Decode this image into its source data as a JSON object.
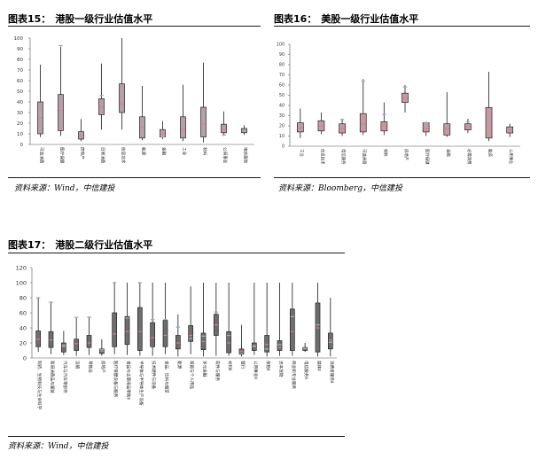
{
  "charts": {
    "c15": {
      "figure_label": "图表15：",
      "title": "港股一级行业估值水平",
      "source": "资料来源：Wind，中信建投",
      "colors": {
        "box": "#b89ea6",
        "median": "#e07d8c",
        "current": "#8fb0cc"
      }
    },
    "c16": {
      "figure_label": "图表16：",
      "title": "美股一级行业估值水平",
      "source": "资料来源：Bloomberg，中信建投",
      "colors": {
        "box": "#c79aa2",
        "median": "#e07d8c",
        "current": "#8fb0cc"
      }
    },
    "c17": {
      "figure_label": "图表17：",
      "title": "港股二级行业估值水平",
      "source": "资料来源：Wind，中信建投",
      "colors": {
        "box": "#6e6e6e",
        "median": "#e07d8c",
        "current": "#8fb0cc"
      }
    }
  },
  "chart_data": [
    {
      "id": "c15",
      "type": "boxplot",
      "title": "港股一级行业估值水平",
      "ylim": [
        0,
        100
      ],
      "yticks": [
        0,
        10,
        20,
        30,
        40,
        50,
        60,
        70,
        80,
        90,
        100
      ],
      "categories": [
        "可选消费",
        "医疗保健",
        "房地产",
        "日常消费",
        "信息技术",
        "能源",
        "金融",
        "工业",
        "材料",
        "公用事业",
        "电信服务"
      ],
      "min": [
        7,
        8,
        3,
        14,
        14,
        4,
        5,
        3,
        2,
        8,
        9
      ],
      "q1": [
        10,
        13,
        5,
        28,
        30,
        6,
        7,
        6,
        7,
        11,
        11
      ],
      "median": [
        25,
        32,
        8,
        35,
        38,
        16,
        10,
        14,
        19,
        14,
        13
      ],
      "q3": [
        40,
        47,
        12,
        43,
        57,
        26,
        14,
        26,
        35,
        19,
        15
      ],
      "max": [
        75,
        92,
        24,
        76,
        100,
        55,
        22,
        56,
        77,
        31,
        18
      ],
      "current": [
        27,
        93,
        11,
        46,
        34,
        9,
        7,
        7,
        8,
        9,
        13
      ]
    },
    {
      "id": "c16",
      "type": "boxplot",
      "title": "美股一级行业估值水平",
      "ylim": [
        0,
        100
      ],
      "yticks": [
        0,
        10,
        20,
        30,
        40,
        50,
        60,
        70,
        80,
        90,
        100
      ],
      "categories": [
        "工业",
        "信息技术",
        "电信服务",
        "可选消费",
        "材料",
        "房地产",
        "医疗保健",
        "金融",
        "必需消费",
        "能源",
        "公用事业"
      ],
      "min": [
        8,
        12,
        10,
        11,
        11,
        33,
        10,
        9,
        13,
        5,
        9
      ],
      "q1": [
        14,
        15,
        13,
        14,
        15,
        43,
        14,
        11,
        16,
        8,
        13
      ],
      "median": [
        18,
        20,
        17,
        22,
        20,
        47,
        17,
        17,
        19,
        25,
        16
      ],
      "q3": [
        23,
        25,
        22,
        32,
        24,
        52,
        23,
        22,
        22,
        38,
        19
      ],
      "max": [
        37,
        33,
        27,
        66,
        43,
        60,
        24,
        53,
        27,
        73,
        22
      ],
      "current": [
        21,
        23,
        26,
        64,
        31,
        58,
        23,
        21,
        24,
        25,
        18
      ]
    },
    {
      "id": "c17",
      "type": "boxplot",
      "title": "港股二级行业估值水平",
      "ylim": [
        0,
        120
      ],
      "yticks": [
        0,
        20,
        40,
        60,
        80,
        100,
        120
      ],
      "categories": [
        "制药、生物科技与生命科学",
        "耐用消费品与服装",
        "汽车与汽车零部件",
        "运输",
        "零售业",
        "房地产",
        "医疗保健设备与服务",
        "食品与主要用品零售Ⅱ",
        "半导体与半导体生产设备",
        "技术硬件与设备",
        "食品、饮料与烟草",
        "能源",
        "家庭与个人用品",
        "多元金融",
        "软件与服务",
        "材料Ⅱ",
        "银行",
        "公用事业Ⅱ",
        "保险Ⅱ",
        "资本货物",
        "商业和专业服务",
        "电信服务Ⅱ",
        "媒体Ⅱ",
        "消费者服务Ⅱ"
      ],
      "min": [
        8,
        5,
        4,
        3,
        4,
        3,
        5,
        4,
        3,
        3,
        5,
        2,
        5,
        2,
        3,
        3,
        2,
        4,
        2,
        3,
        3,
        8,
        2,
        2
      ],
      "q1": [
        15,
        14,
        8,
        10,
        14,
        6,
        15,
        18,
        10,
        15,
        15,
        12,
        22,
        11,
        30,
        7,
        5,
        10,
        8,
        10,
        10,
        10,
        8,
        12
      ],
      "median": [
        25,
        24,
        15,
        19,
        20,
        9,
        32,
        35,
        35,
        27,
        30,
        20,
        30,
        22,
        44,
        20,
        9,
        15,
        18,
        14,
        35,
        12,
        40,
        24
      ],
      "q3": [
        36,
        35,
        20,
        25,
        30,
        12,
        60,
        55,
        67,
        47,
        50,
        30,
        43,
        33,
        58,
        35,
        12,
        20,
        30,
        23,
        65,
        14,
        73,
        33
      ],
      "max": [
        80,
        75,
        36,
        53,
        55,
        25,
        100,
        100,
        100,
        100,
        100,
        58,
        95,
        100,
        100,
        100,
        44,
        100,
        100,
        100,
        100,
        20,
        100,
        80
      ],
      "current": [
        80,
        74,
        17,
        54,
        54,
        11,
        100,
        53,
        100,
        51,
        51,
        41,
        26,
        29,
        61,
        30,
        6,
        16,
        12,
        18,
        55,
        13,
        44,
        21
      ]
    }
  ]
}
